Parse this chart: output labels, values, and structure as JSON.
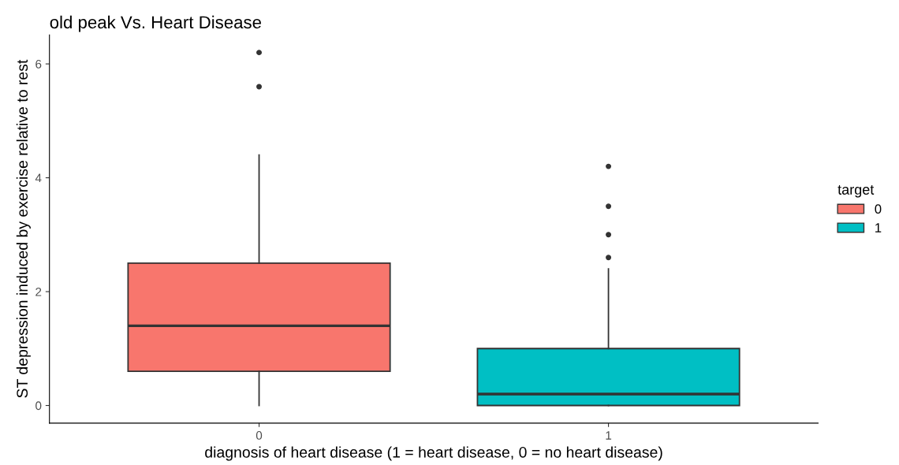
{
  "chart_data": {
    "type": "box",
    "title": "old peak Vs. Heart Disease",
    "xlabel": "diagnosis of heart disease (1 = heart disease, 0 = no heart disease)",
    "ylabel": "ST depression induced by exercise relative to rest",
    "legend_title": "target",
    "legend": "right",
    "grid": false,
    "categories": [
      "0",
      "1"
    ],
    "ylim": [
      -0.31,
      6.51
    ],
    "yticks": [
      0,
      2,
      4,
      6
    ],
    "series": [
      {
        "name": "0",
        "color": "#f8766d",
        "boxes": [
          {
            "low": 0,
            "q1": 0.6,
            "median": 1.4,
            "q3": 2.5,
            "high": 4.4,
            "outliers": [
              5.6,
              6.2
            ]
          },
          null
        ]
      },
      {
        "name": "1",
        "color": "#00bfc4",
        "boxes": [
          null,
          {
            "low": 0,
            "q1": 0,
            "median": 0.2,
            "q3": 1.0,
            "high": 2.4,
            "outliers": [
              2.6,
              3.0,
              3.5,
              4.2
            ]
          }
        ]
      }
    ]
  }
}
